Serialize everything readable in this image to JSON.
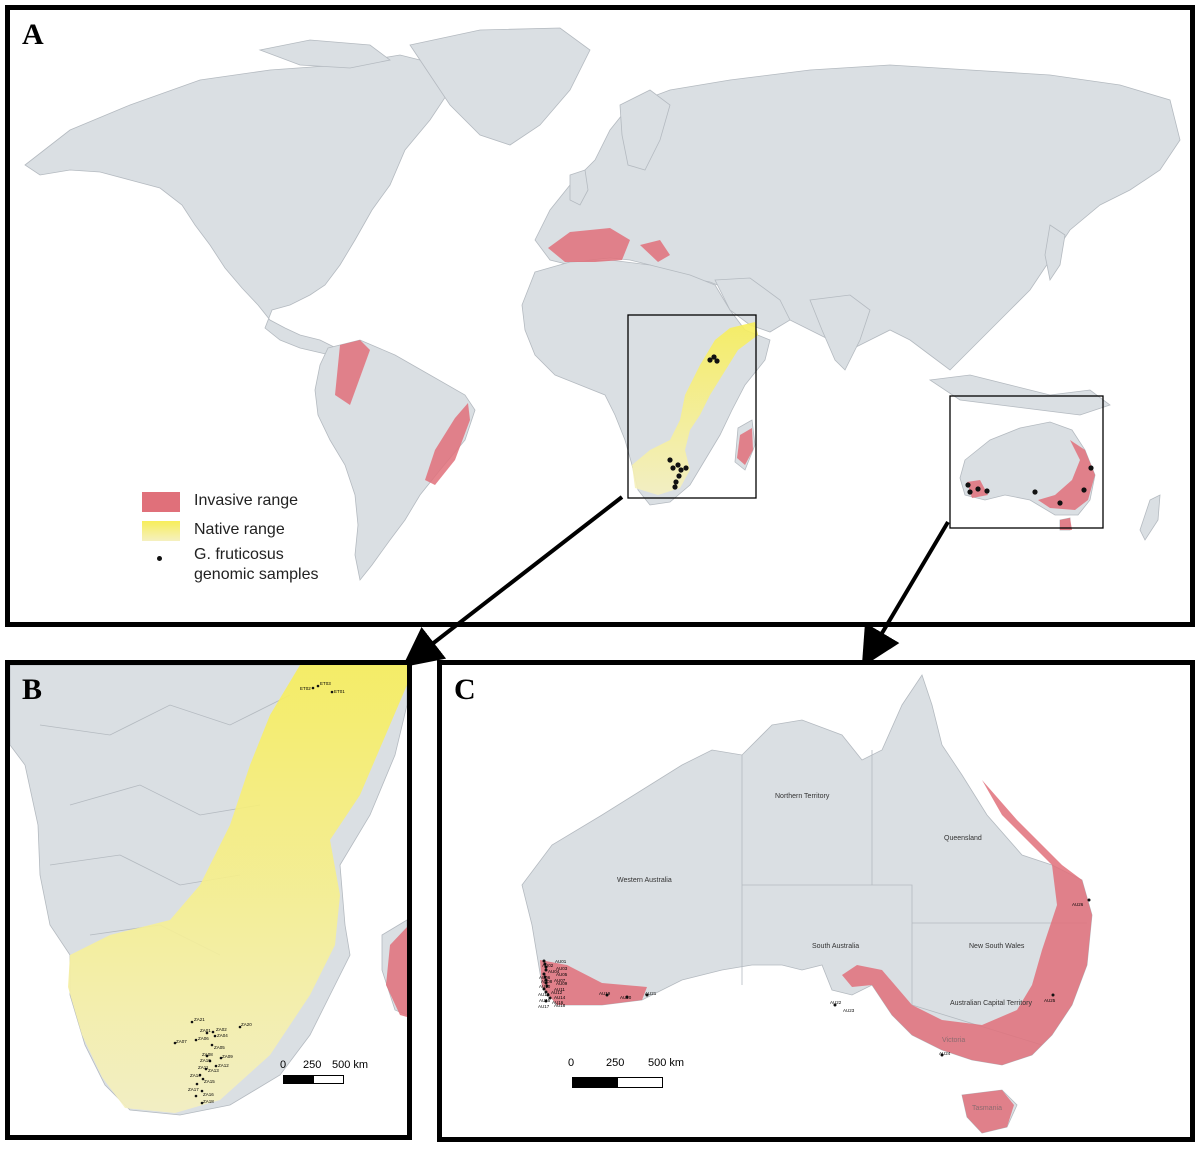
{
  "panels": {
    "a": {
      "label": "A"
    },
    "b": {
      "label": "B"
    },
    "c": {
      "label": "C"
    }
  },
  "legend": {
    "invasive": "Invasive range",
    "native": "Native range",
    "samples_line1": "G. fruticosus",
    "samples_line2": "genomic samples"
  },
  "colors": {
    "land": "#dadfe3",
    "border": "#b4bac0",
    "invasive": "#e0707a",
    "native_top": "#f7ee5a",
    "native_bottom": "#f5f0c0",
    "sample": "#111111"
  },
  "scale_b": {
    "ticks": [
      "0",
      "250",
      "500 km"
    ]
  },
  "scale_c": {
    "ticks": [
      "0",
      "250",
      "500 km"
    ]
  },
  "regions_c": {
    "northern_territory": "Northern Territory",
    "queensland": "Queensland",
    "western_australia": "Western Australia",
    "south_australia": "South Australia",
    "new_south_wales": "New South Wales",
    "act": "Australian Capital Territory",
    "victoria": "Victoria",
    "tasmania": "Tasmania"
  },
  "sites_b": [
    "ET02",
    "ET03",
    "ET01",
    "ZA21",
    "ZA01",
    "ZA02",
    "ZA04",
    "ZA20",
    "ZA07",
    "ZA06",
    "ZA05",
    "ZA08",
    "ZA09",
    "ZA10",
    "ZA12",
    "ZA11",
    "ZA13",
    "ZA14",
    "ZA15",
    "ZA17",
    "ZA16",
    "ZA18"
  ],
  "sites_c": [
    "AU01",
    "AU02",
    "AU03",
    "AU04",
    "AU05",
    "AU06",
    "AU07",
    "AU08",
    "AU09",
    "AU10",
    "AU11",
    "AU12",
    "AU13",
    "AU14",
    "AU15",
    "AU16",
    "AU17",
    "AU18",
    "AU19",
    "AU20",
    "AU21",
    "AU22",
    "AU23",
    "AU24",
    "AU25",
    "AU26"
  ]
}
